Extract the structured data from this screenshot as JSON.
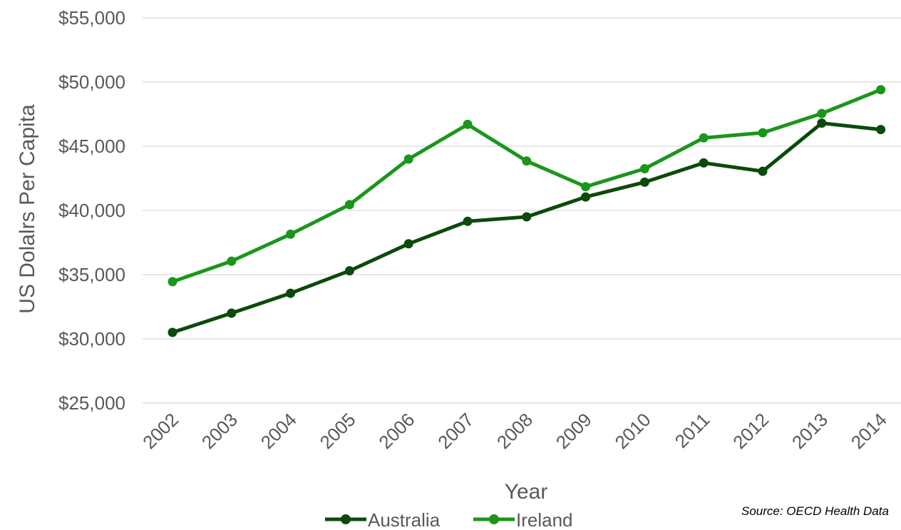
{
  "chart_data": {
    "type": "line",
    "title": "",
    "xlabel": "Year",
    "ylabel": "US Dolalrs Per Capita",
    "categories": [
      "2002",
      "2003",
      "2004",
      "2005",
      "2006",
      "2007",
      "2008",
      "2009",
      "2010",
      "2011",
      "2012",
      "2013",
      "2014"
    ],
    "ylim": [
      25000,
      55000
    ],
    "yticks": [
      25000,
      30000,
      35000,
      40000,
      45000,
      50000,
      55000
    ],
    "ytick_labels": [
      "$25,000",
      "$30,000",
      "$35,000",
      "$40,000",
      "$45,000",
      "$50,000",
      "$55,000"
    ],
    "grid": true,
    "legend_position": "bottom",
    "series": [
      {
        "name": "Australia",
        "color": "#0b4a0b",
        "values": [
          30500,
          32000,
          33550,
          35300,
          37400,
          39150,
          39500,
          41050,
          42200,
          43700,
          43050,
          46800,
          46300
        ]
      },
      {
        "name": "Ireland",
        "color": "#1a961a",
        "values": [
          34450,
          36050,
          38150,
          40450,
          44000,
          46700,
          43850,
          41850,
          43250,
          45650,
          46050,
          47550,
          49400
        ]
      }
    ],
    "source_note": "Source: OECD Health Data"
  }
}
